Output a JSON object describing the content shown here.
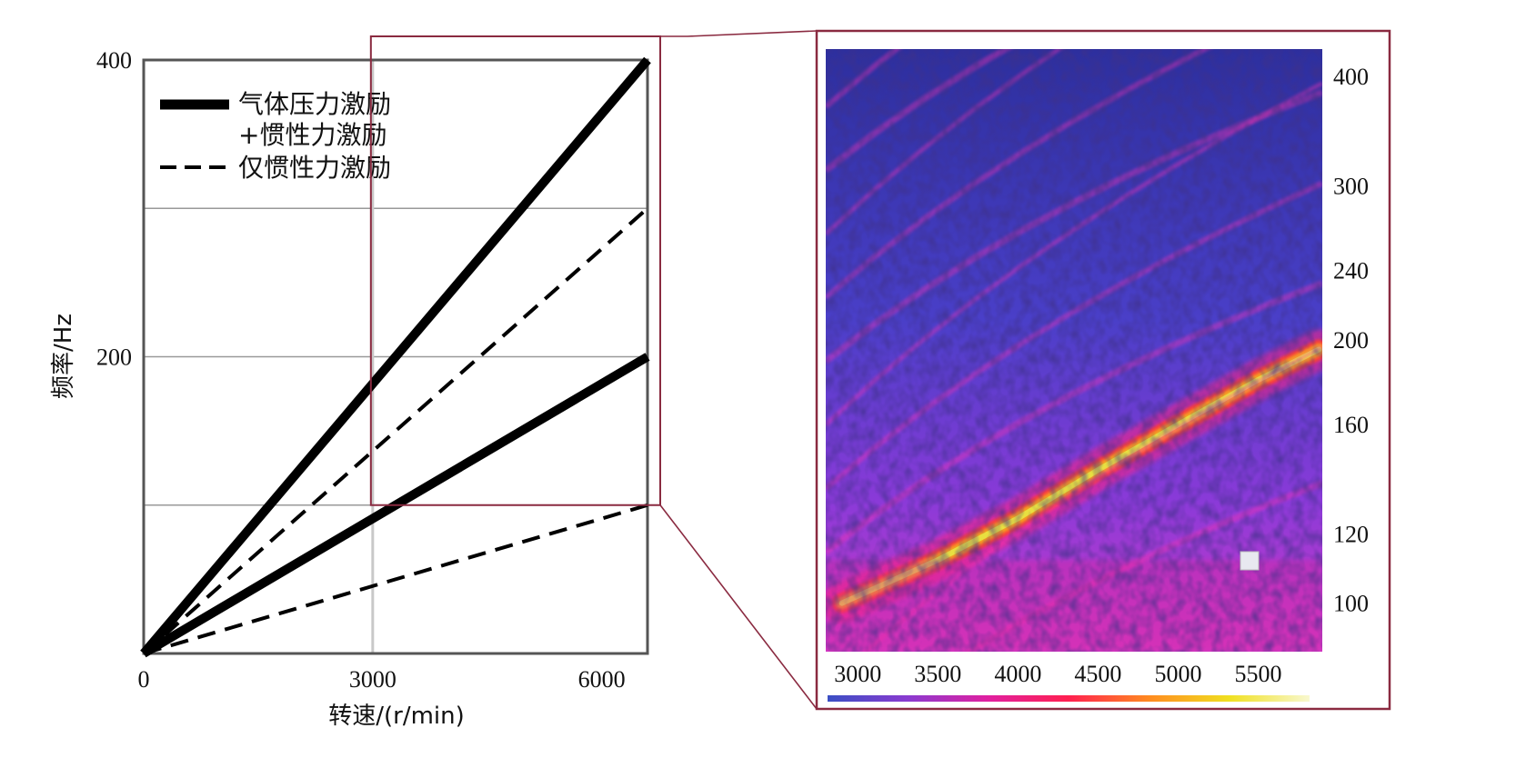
{
  "chart_data": [
    {
      "type": "line",
      "xlabel": "转速/(r/min)",
      "ylabel": "频率/Hz",
      "xlim": [
        0,
        6600
      ],
      "ylim": [
        0,
        400
      ],
      "x_ticks": [
        {
          "value": 0,
          "label": "0"
        },
        {
          "value": 3000,
          "label": "3000"
        },
        {
          "value": 6000,
          "label": "6000"
        }
      ],
      "y_ticks": [
        {
          "value": 200,
          "label": "200"
        },
        {
          "value": 400,
          "label": "400"
        }
      ],
      "grid_y": [
        100,
        200,
        300
      ],
      "grid_x": [
        3000
      ],
      "grid": true,
      "legend": {
        "position": "top-left",
        "entries": [
          {
            "style": "solid",
            "label": "气体压力激励",
            "label_line2": "+惯性力激励"
          },
          {
            "style": "dashed",
            "label": "仅惯性力激励"
          }
        ]
      },
      "series": [
        {
          "style": "solid",
          "x": [
            0,
            6600
          ],
          "y": [
            0,
            400
          ]
        },
        {
          "style": "solid",
          "x": [
            0,
            6600
          ],
          "y": [
            0,
            200
          ]
        },
        {
          "style": "dashed",
          "x": [
            0,
            6600
          ],
          "y": [
            0,
            300
          ]
        },
        {
          "style": "dashed",
          "x": [
            0,
            6600
          ],
          "y": [
            0,
            100
          ]
        }
      ],
      "zoom_region": {
        "x": [
          3000,
          6600
        ],
        "y": [
          100,
          400
        ]
      }
    },
    {
      "type": "heatmap",
      "x_ticks": [
        "3000",
        "3500",
        "4000",
        "4500",
        "5000",
        "5500"
      ],
      "y_ticks": [
        "400",
        "300",
        "240",
        "200",
        "160",
        "120",
        "100"
      ],
      "xlim": [
        2800,
        5900
      ],
      "y_scale": "log",
      "ylim": [
        88,
        430
      ],
      "dominant_ridge": {
        "x": [
          2900,
          3500,
          4000,
          4500,
          5000,
          5500,
          5880
        ],
        "y": [
          100,
          112,
          125,
          142,
          160,
          180,
          195
        ]
      },
      "colorbar": {
        "position": "bottom",
        "colors": [
          "#3a4fc4",
          "#8a3bd0",
          "#e020a0",
          "#ff2050",
          "#ff8a20",
          "#f0e020",
          "#f8f8d0"
        ]
      }
    }
  ],
  "colors": {
    "frame": "#8a2a40",
    "grid": "#999999",
    "axes_box": "#555555",
    "heat_background": "#3a40b8",
    "ridge": "#e8e040"
  }
}
